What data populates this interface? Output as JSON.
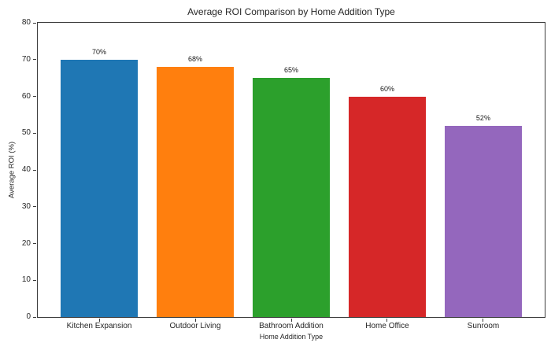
{
  "chart_data": {
    "type": "bar",
    "title": "Average ROI Comparison by Home Addition Type",
    "xlabel": "Home Addition Type",
    "ylabel": "Average ROI (%)",
    "categories": [
      "Kitchen Expansion",
      "Outdoor Living",
      "Bathroom Addition",
      "Home Office",
      "Sunroom"
    ],
    "values": [
      70,
      68,
      65,
      60,
      52
    ],
    "bar_labels": [
      "70%",
      "68%",
      "65%",
      "60%",
      "52%"
    ],
    "bar_colors": [
      "#1f77b4",
      "#ff7f0e",
      "#2ca02c",
      "#d62728",
      "#9467bd"
    ],
    "ylim": [
      0,
      80
    ],
    "yticks": [
      0,
      10,
      20,
      30,
      40,
      50,
      60,
      70,
      80
    ],
    "grid": false,
    "legend": "none",
    "text_color": "#262626",
    "spine_color": "#3c3c3c",
    "background_color": "#ffffff"
  }
}
